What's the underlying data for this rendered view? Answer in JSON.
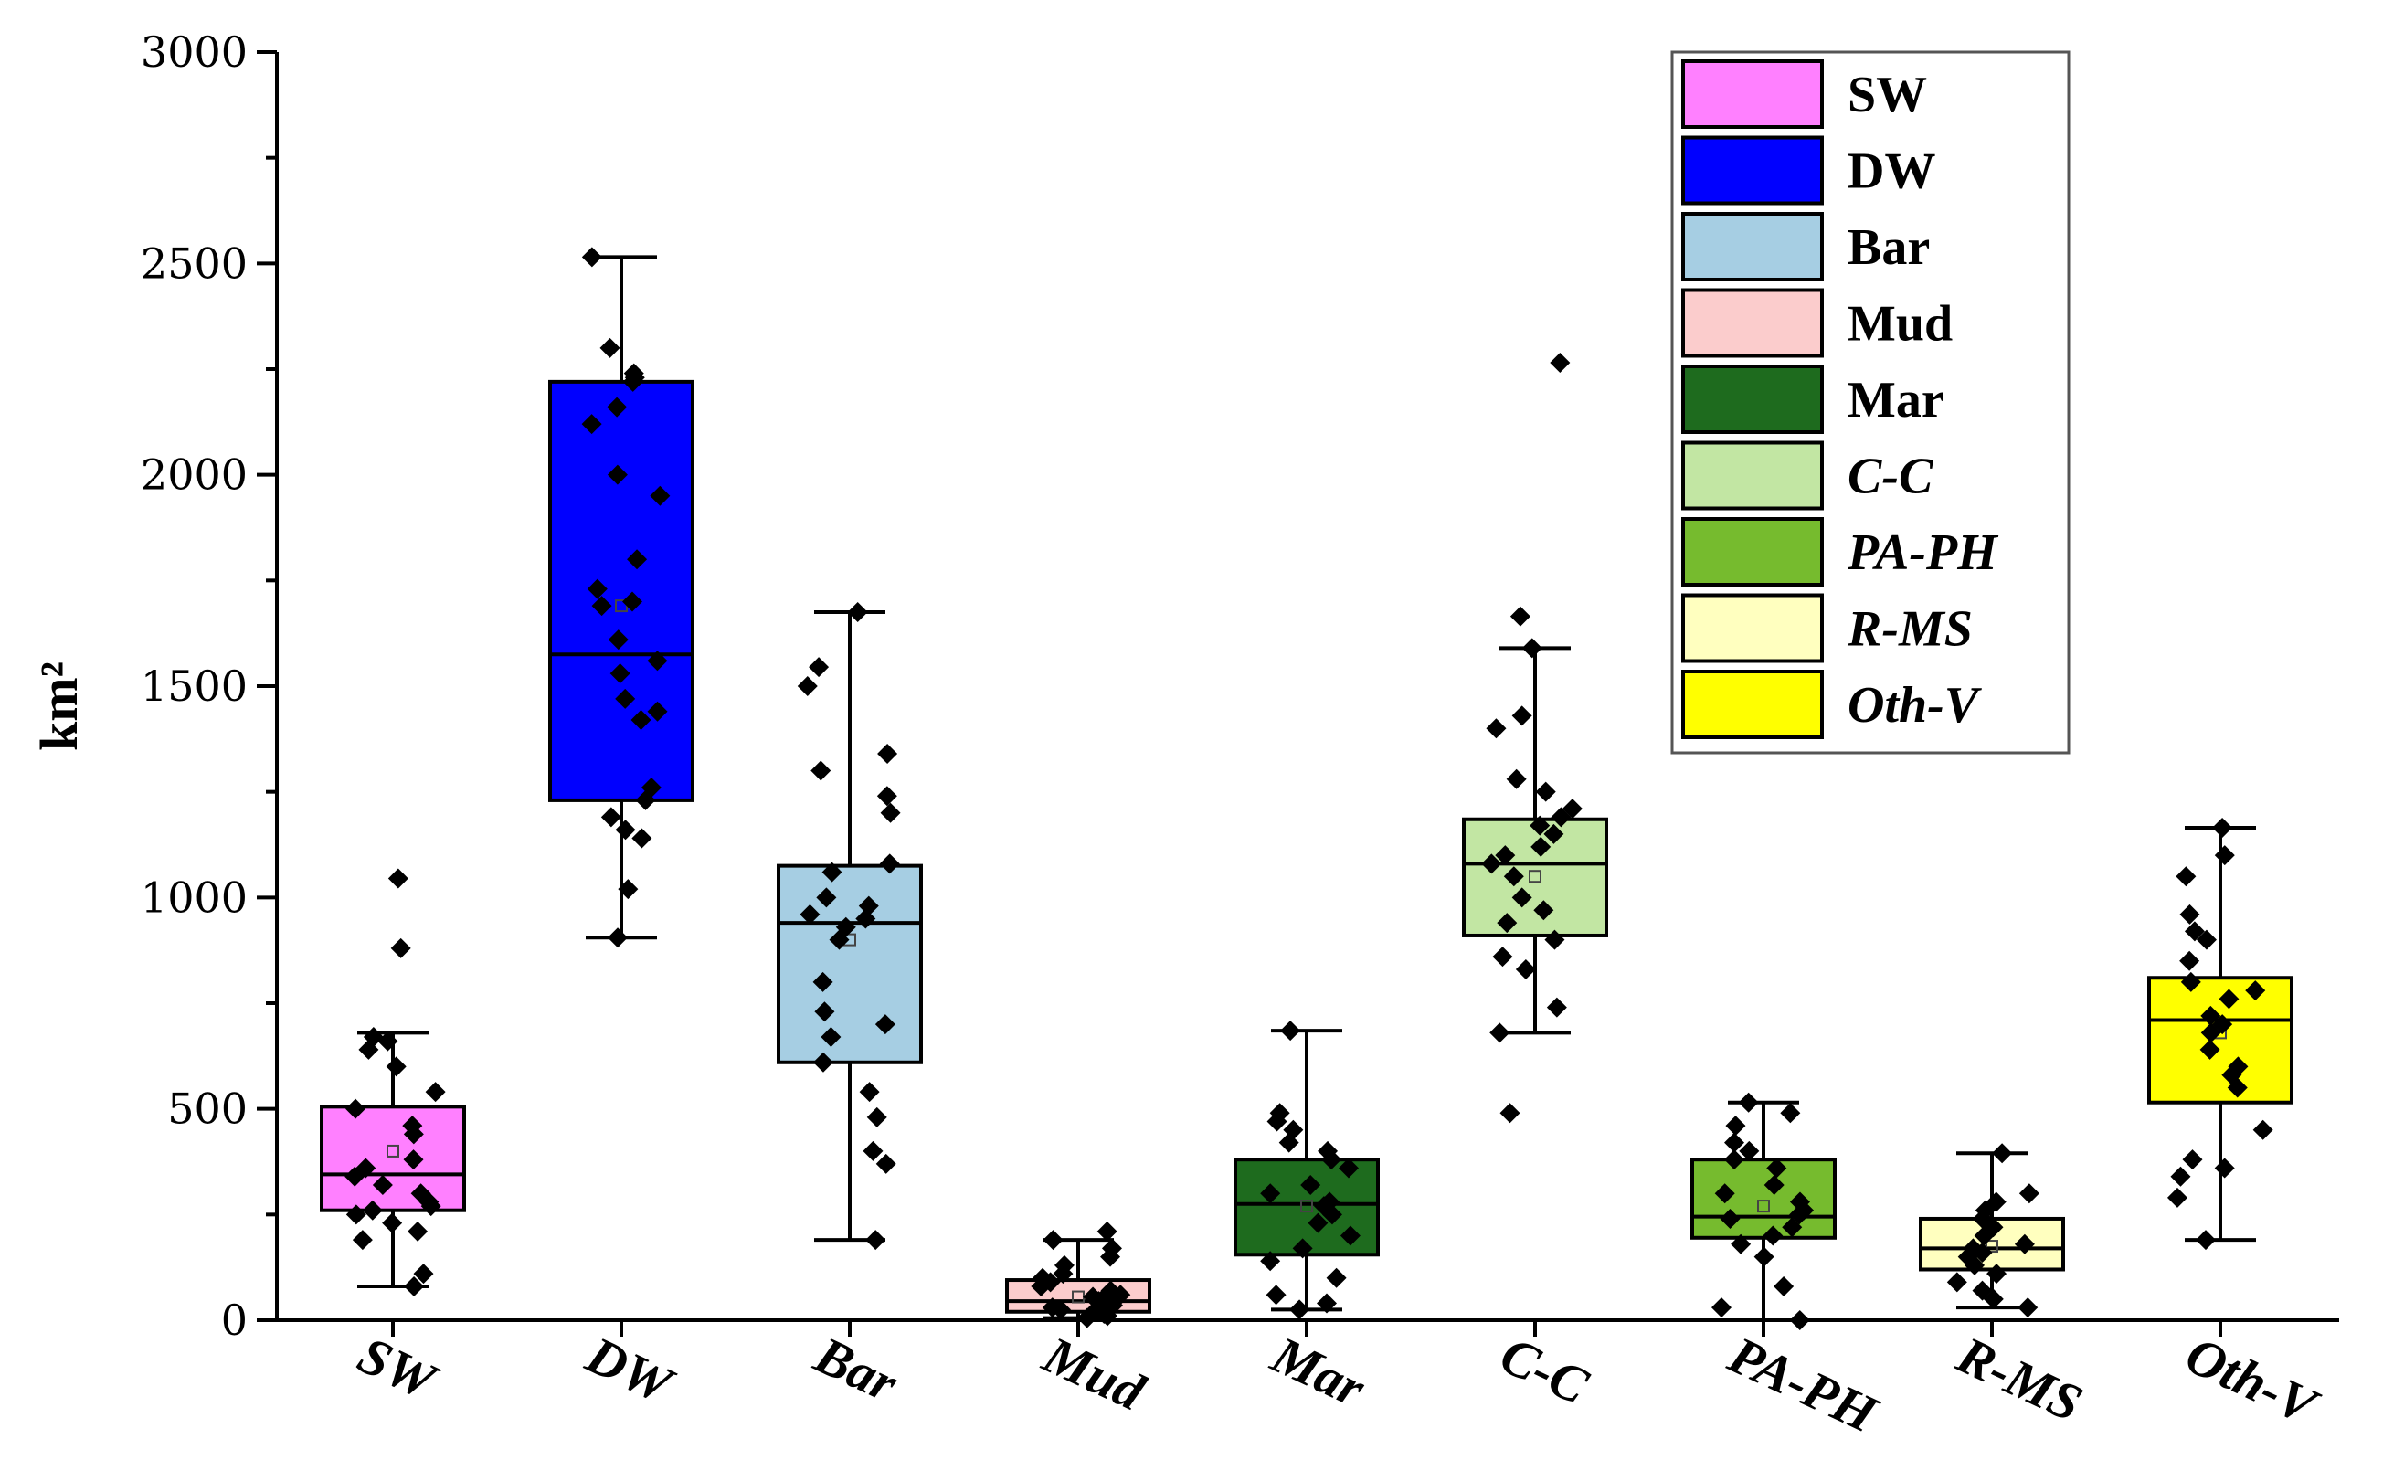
{
  "chart_data": {
    "type": "box",
    "ylabel": "km²",
    "ylim": [
      0,
      3000
    ],
    "yticks": [
      "0",
      "500",
      "1000",
      "1500",
      "2000",
      "2500",
      "3000"
    ],
    "categories": [
      "SW",
      "DW",
      "Bar",
      "Mud",
      "Mar",
      "C-C",
      "PA-PH",
      "R-MS",
      "Oth-V"
    ],
    "legend": [
      {
        "label": "SW",
        "italic": false
      },
      {
        "label": "DW",
        "italic": false
      },
      {
        "label": "Bar",
        "italic": false
      },
      {
        "label": "Mud",
        "italic": false
      },
      {
        "label": "Mar",
        "italic": false
      },
      {
        "label": "C-C",
        "italic": true
      },
      {
        "label": "PA-PH",
        "italic": true
      },
      {
        "label": "R-MS",
        "italic": true
      },
      {
        "label": "Oth-V",
        "italic": true
      }
    ],
    "colors": [
      "#ff80ff",
      "#0000ff",
      "#a6cee3",
      "#fbcccc",
      "#1e6b1e",
      "#c2e6a3",
      "#76bb2e",
      "#ffffbf",
      "#ffff00"
    ],
    "boxes": [
      {
        "name": "SW",
        "whisker_low": 80,
        "q1": 260,
        "median": 345,
        "q3": 505,
        "whisker_high": 680,
        "mean": 400,
        "points": [
          80,
          110,
          190,
          210,
          230,
          250,
          260,
          270,
          280,
          300,
          320,
          340,
          360,
          380,
          440,
          460,
          500,
          540,
          600,
          640,
          660,
          670,
          880,
          1045
        ]
      },
      {
        "name": "DW",
        "whisker_low": 905,
        "q1": 1230,
        "median": 1575,
        "q3": 2220,
        "whisker_high": 2515,
        "mean": 1690,
        "points": [
          905,
          1020,
          1140,
          1160,
          1190,
          1230,
          1260,
          1420,
          1440,
          1470,
          1530,
          1560,
          1610,
          1690,
          1700,
          1730,
          1800,
          1950,
          2000,
          2120,
          2160,
          2220,
          2230,
          2240,
          2300,
          2515
        ]
      },
      {
        "name": "Bar",
        "whisker_low": 190,
        "q1": 610,
        "median": 940,
        "q3": 1075,
        "whisker_high": 1675,
        "mean": 900,
        "points": [
          190,
          370,
          400,
          480,
          540,
          610,
          670,
          700,
          730,
          800,
          900,
          930,
          950,
          960,
          980,
          1000,
          1060,
          1080,
          1200,
          1240,
          1300,
          1340,
          1500,
          1545,
          1675
        ]
      },
      {
        "name": "Mud",
        "whisker_low": 5,
        "q1": 20,
        "median": 45,
        "q3": 95,
        "whisker_high": 190,
        "mean": 55,
        "points": [
          5,
          10,
          15,
          20,
          25,
          30,
          35,
          40,
          45,
          50,
          55,
          60,
          70,
          80,
          90,
          100,
          110,
          130,
          150,
          170,
          190,
          210
        ]
      },
      {
        "name": "Mar",
        "whisker_low": 25,
        "q1": 155,
        "median": 275,
        "q3": 380,
        "whisker_high": 685,
        "mean": 270,
        "points": [
          25,
          40,
          60,
          100,
          140,
          170,
          200,
          230,
          250,
          270,
          280,
          300,
          320,
          360,
          380,
          400,
          420,
          450,
          470,
          490,
          685
        ]
      },
      {
        "name": "C-C",
        "whisker_low": 680,
        "q1": 910,
        "median": 1080,
        "q3": 1185,
        "whisker_high": 1590,
        "mean": 1050,
        "points": [
          490,
          680,
          740,
          830,
          860,
          900,
          940,
          970,
          1000,
          1050,
          1080,
          1100,
          1120,
          1150,
          1170,
          1190,
          1210,
          1250,
          1280,
          1400,
          1430,
          1590,
          1665,
          2265
        ]
      },
      {
        "name": "PA-PH",
        "whisker_low": 0,
        "q1": 195,
        "median": 245,
        "q3": 380,
        "whisker_high": 515,
        "mean": 270,
        "points": [
          0,
          30,
          80,
          150,
          180,
          200,
          220,
          240,
          250,
          260,
          280,
          300,
          320,
          360,
          380,
          400,
          420,
          460,
          490,
          515
        ]
      },
      {
        "name": "R-MS",
        "whisker_low": 30,
        "q1": 120,
        "median": 170,
        "q3": 240,
        "whisker_high": 395,
        "mean": 175,
        "points": [
          30,
          50,
          70,
          90,
          110,
          130,
          150,
          160,
          170,
          180,
          200,
          220,
          240,
          260,
          280,
          300,
          395
        ]
      },
      {
        "name": "Oth-V",
        "whisker_low": 190,
        "q1": 515,
        "median": 710,
        "q3": 810,
        "whisker_high": 1165,
        "mean": 680,
        "points": [
          190,
          290,
          340,
          360,
          380,
          450,
          550,
          580,
          600,
          640,
          680,
          700,
          720,
          760,
          780,
          800,
          850,
          900,
          920,
          960,
          1050,
          1100,
          1165
        ]
      }
    ]
  }
}
